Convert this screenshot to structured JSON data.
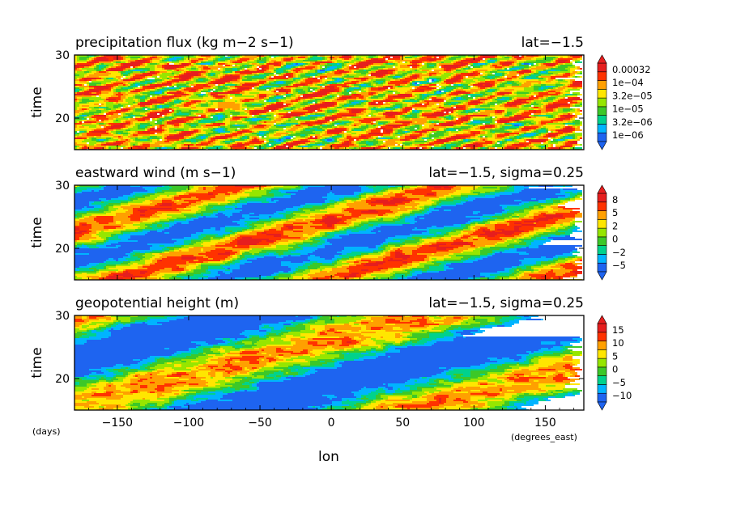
{
  "palette": [
    "#1e64f0",
    "#00b4ff",
    "#00d28c",
    "#3cc828",
    "#96e600",
    "#ffe600",
    "#ffa000",
    "#ff3200",
    "#e61e1e"
  ],
  "x_unit": "(degrees_east)",
  "y_unit": "(days)",
  "x_axis_label": "lon",
  "chart_data": [
    {
      "type": "heatmap",
      "title": "precipitation flux (kg m−2 s−1)",
      "annotation": "lat=−1.5",
      "xlabel": "lon",
      "ylabel": "time",
      "xlim": [
        -180,
        177
      ],
      "ylim": [
        15,
        30
      ],
      "x_ticks": [
        "−150",
        "−100",
        "−50",
        "0",
        "50",
        "100",
        "150"
      ],
      "x_tick_values": [
        -150,
        -100,
        -50,
        0,
        50,
        100,
        150
      ],
      "y_ticks": [
        "20",
        "30"
      ],
      "y_tick_values": [
        20,
        30
      ],
      "colorbar_labels": [
        "0.00032",
        "1e−04",
        "3.2e−05",
        "1e−05",
        "3.2e−06",
        "1e−06"
      ],
      "colorscale": "log",
      "dominant": "red"
    },
    {
      "type": "heatmap",
      "title": "eastward wind (m s−1)",
      "annotation": "lat=−1.5, sigma=0.25",
      "xlabel": "lon",
      "ylabel": "time",
      "xlim": [
        -180,
        177
      ],
      "ylim": [
        15,
        30
      ],
      "x_ticks": [
        "−150",
        "−100",
        "−50",
        "0",
        "50",
        "100",
        "150"
      ],
      "x_tick_values": [
        -150,
        -100,
        -50,
        0,
        50,
        100,
        150
      ],
      "y_ticks": [
        "20",
        "30"
      ],
      "y_tick_values": [
        20,
        30
      ],
      "colorbar_labels": [
        "8",
        "5",
        "2",
        "0",
        "−2",
        "−5"
      ],
      "colorscale": "linear",
      "dominant": "blue"
    },
    {
      "type": "heatmap",
      "title": "geopotential height (m)",
      "annotation": "lat=−1.5, sigma=0.25",
      "xlabel": "lon",
      "ylabel": "time",
      "xlim": [
        -180,
        177
      ],
      "ylim": [
        15,
        30
      ],
      "x_ticks": [
        "−150",
        "−100",
        "−50",
        "0",
        "50",
        "100",
        "150"
      ],
      "x_tick_values": [
        -150,
        -100,
        -50,
        0,
        50,
        100,
        150
      ],
      "y_ticks": [
        "20",
        "30"
      ],
      "y_tick_values": [
        20,
        30
      ],
      "colorbar_labels": [
        "15",
        "10",
        "5",
        "0",
        "−5",
        "−10"
      ],
      "colorscale": "linear",
      "dominant": "blue"
    }
  ]
}
